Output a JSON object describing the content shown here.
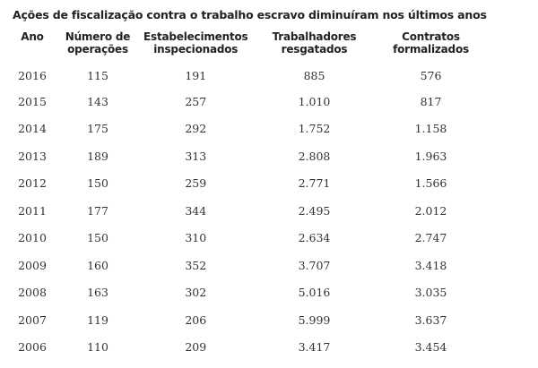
{
  "title": "Ações de fiscalização contra o trabalho escravo diminuíram nos últimos anos",
  "headers": {
    "ano": "Ano",
    "operacoes_1": "Número de",
    "operacoes_2": "operações",
    "estabelecimentos_1": "Estabelecimentos",
    "estabelecimentos_2": "inspecionados",
    "trabalhadores_1": "Trabalhadores",
    "trabalhadores_2": "resgatados",
    "contratos_1": "Contratos",
    "contratos_2": "formalizados"
  },
  "rows": [
    {
      "ano": "2016",
      "operacoes": "115",
      "estabelecimentos": "191",
      "trabalhadores": "885",
      "contratos": "576"
    },
    {
      "ano": "2015",
      "operacoes": "143",
      "estabelecimentos": "257",
      "trabalhadores": "1.010",
      "contratos": "817"
    },
    {
      "ano": "2014",
      "operacoes": "175",
      "estabelecimentos": "292",
      "trabalhadores": "1.752",
      "contratos": "1.158"
    },
    {
      "ano": "2013",
      "operacoes": "189",
      "estabelecimentos": "313",
      "trabalhadores": "2.808",
      "contratos": "1.963"
    },
    {
      "ano": "2012",
      "operacoes": "150",
      "estabelecimentos": "259",
      "trabalhadores": "2.771",
      "contratos": "1.566"
    },
    {
      "ano": "2011",
      "operacoes": "177",
      "estabelecimentos": "344",
      "trabalhadores": "2.495",
      "contratos": "2.012"
    },
    {
      "ano": "2010",
      "operacoes": "150",
      "estabelecimentos": "310",
      "trabalhadores": "2.634",
      "contratos": "2.747"
    },
    {
      "ano": "2009",
      "operacoes": "160",
      "estabelecimentos": "352",
      "trabalhadores": "3.707",
      "contratos": "3.418"
    },
    {
      "ano": "2008",
      "operacoes": "163",
      "estabelecimentos": "302",
      "trabalhadores": "5.016",
      "contratos": "3.035"
    },
    {
      "ano": "2007",
      "operacoes": "119",
      "estabelecimentos": "206",
      "trabalhadores": "5.999",
      "contratos": "3.637"
    },
    {
      "ano": "2006",
      "operacoes": "110",
      "estabelecimentos": "209",
      "trabalhadores": "3.417",
      "contratos": "3.454"
    }
  ]
}
